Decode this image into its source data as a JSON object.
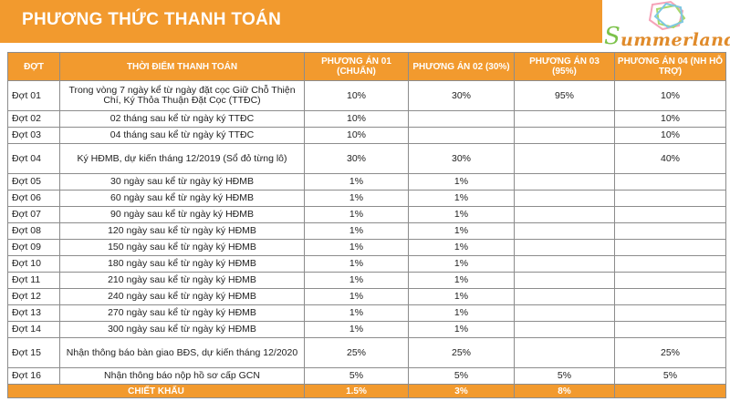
{
  "header": {
    "title": "PHƯƠNG THỨC THANH TOÁN"
  },
  "logo": {
    "text": "ummerland"
  },
  "table": {
    "columns": [
      "ĐỢT",
      "THỜI ĐIỂM THANH TOÁN",
      "PHƯƠNG ÁN 01 (CHUẨN)",
      "PHƯƠNG ÁN 02 (30%)",
      "PHƯƠNG ÁN 03 (95%)",
      "PHƯƠNG ÁN 04 (NH HỖ TRỢ)"
    ],
    "rows": [
      [
        "Đợt 01",
        "Trong vòng 7 ngày kể từ ngày đặt cọc Giữ Chỗ Thiện Chí, Ký Thỏa Thuận Đặt Cọc (TTĐC)",
        "10%",
        "30%",
        "95%",
        "10%"
      ],
      [
        "Đợt 02",
        "02 tháng sau kể từ ngày ký TTĐC",
        "10%",
        "",
        "",
        "10%"
      ],
      [
        "Đợt 03",
        "04 tháng sau kể từ ngày ký TTĐC",
        "10%",
        "",
        "",
        "10%"
      ],
      [
        "Đợt 04",
        "Ký HĐMB, dự kiến tháng 12/2019 (Sổ đỏ từng lô)",
        "30%",
        "30%",
        "",
        "40%"
      ],
      [
        "Đợt 05",
        "30 ngày sau kể từ ngày ký HĐMB",
        "1%",
        "1%",
        "",
        ""
      ],
      [
        "Đợt 06",
        "60 ngày sau kể từ ngày ký HĐMB",
        "1%",
        "1%",
        "",
        ""
      ],
      [
        "Đợt 07",
        "90 ngày sau kể từ ngày ký HĐMB",
        "1%",
        "1%",
        "",
        ""
      ],
      [
        "Đợt 08",
        "120 ngày sau kể từ ngày ký HĐMB",
        "1%",
        "1%",
        "",
        ""
      ],
      [
        "Đợt 09",
        "150 ngày sau kể từ ngày ký HĐMB",
        "1%",
        "1%",
        "",
        ""
      ],
      [
        "Đợt 10",
        "180 ngày sau kể từ ngày ký HĐMB",
        "1%",
        "1%",
        "",
        ""
      ],
      [
        "Đợt 11",
        "210 ngày sau kể từ ngày ký HĐMB",
        "1%",
        "1%",
        "",
        ""
      ],
      [
        "Đợt 12",
        "240 ngày sau kể từ ngày ký HĐMB",
        "1%",
        "1%",
        "",
        ""
      ],
      [
        "Đợt 13",
        "270 ngày sau kể từ ngày ký HĐMB",
        "1%",
        "1%",
        "",
        ""
      ],
      [
        "Đợt 14",
        "300 ngày sau kể từ ngày ký HĐMB",
        "1%",
        "1%",
        "",
        ""
      ],
      [
        "Đợt 15",
        "Nhận thông báo bàn giao BĐS, dự kiến tháng 12/2020",
        "25%",
        "25%",
        "",
        "25%"
      ],
      [
        "Đợt 16",
        "Nhận thông báo nộp hồ sơ cấp GCN",
        "5%",
        "5%",
        "5%",
        "5%"
      ]
    ],
    "total": [
      "CHIẾT KHẤU",
      "1.5%",
      "3%",
      "8%",
      ""
    ]
  },
  "colors": {
    "accent": "#f29a2e",
    "border": "#8c8c8c"
  }
}
